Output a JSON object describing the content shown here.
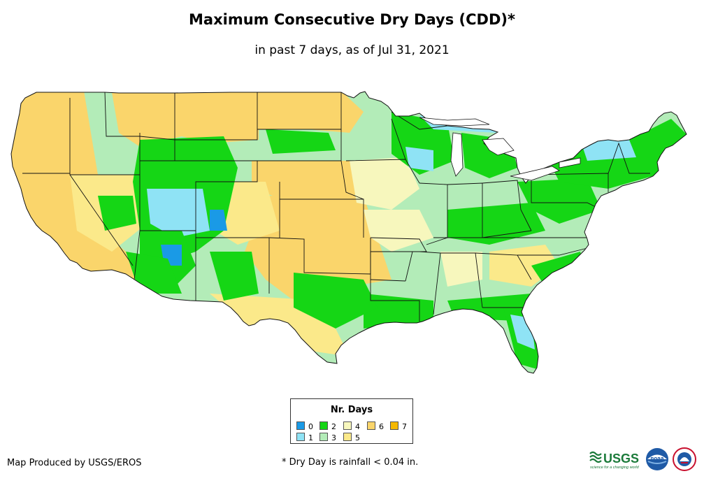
{
  "title": "Maximum Consecutive Dry Days (CDD)*",
  "subtitle": "in past 7 days, as of Jul 31, 2021",
  "legend": {
    "title": "Nr. Days",
    "items": [
      {
        "label": "0",
        "color": "#1a9ae6"
      },
      {
        "label": "1",
        "color": "#8fe3f5"
      },
      {
        "label": "2",
        "color": "#15d615"
      },
      {
        "label": "3",
        "color": "#b3ecb8"
      },
      {
        "label": "4",
        "color": "#f7f7bd"
      },
      {
        "label": "5",
        "color": "#fbe98a"
      },
      {
        "label": "6",
        "color": "#fad56b"
      },
      {
        "label": "7",
        "color": "#f5b800"
      }
    ]
  },
  "credit": "Map Produced by USGS/EROS",
  "footnote": "* Dry Day is rainfall < 0.04 in.",
  "logos": {
    "usgs": "USGS",
    "usgs_tagline": "science for a changing world",
    "noaa": "noaa"
  }
}
